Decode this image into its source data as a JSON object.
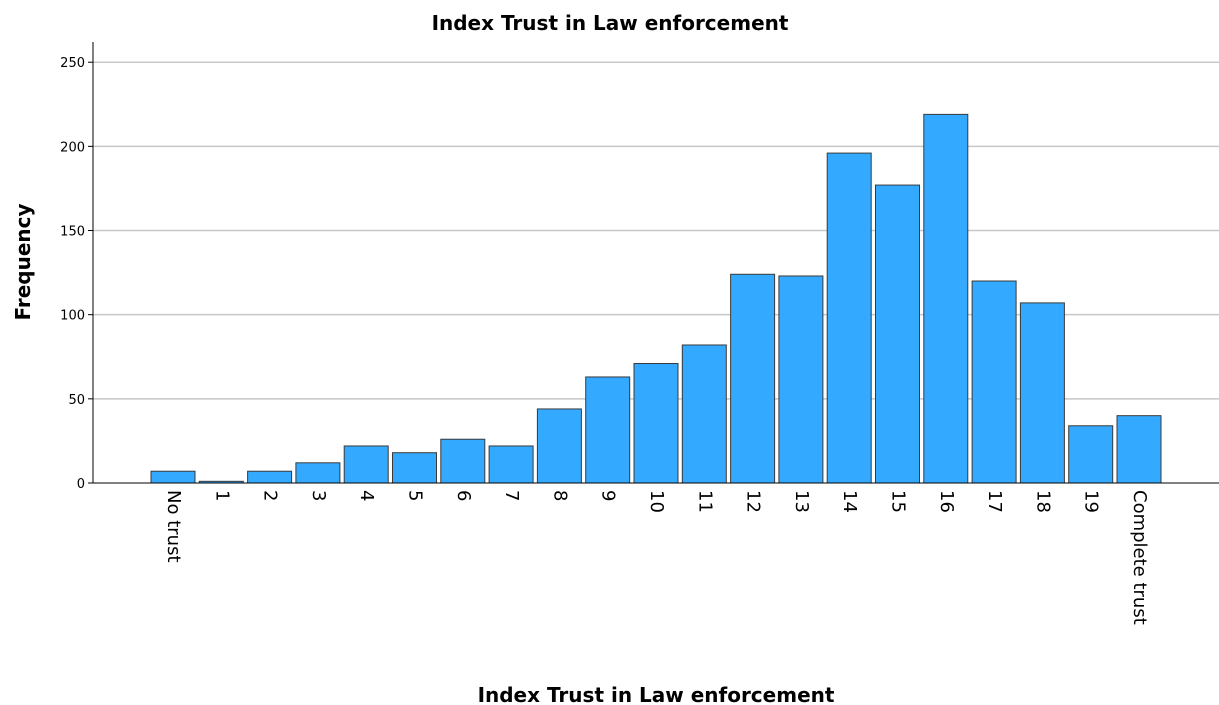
{
  "chart_data": {
    "type": "bar",
    "title": "Index Trust in Law enforcement",
    "xlabel": "Index Trust in Law enforcement",
    "ylabel": "Frequency",
    "categories": [
      "No trust",
      "1",
      "2",
      "3",
      "4",
      "5",
      "6",
      "7",
      "8",
      "9",
      "10",
      "11",
      "12",
      "13",
      "14",
      "15",
      "16",
      "17",
      "18",
      "19",
      "Complete trust"
    ],
    "values": [
      7,
      1,
      7,
      12,
      22,
      18,
      26,
      22,
      44,
      63,
      71,
      82,
      124,
      123,
      196,
      177,
      219,
      120,
      107,
      34,
      40
    ],
    "yticks": [
      0,
      50,
      100,
      150,
      200,
      250
    ],
    "ylim": [
      0,
      262
    ],
    "grid": true,
    "bar_color": "#33aaff"
  }
}
